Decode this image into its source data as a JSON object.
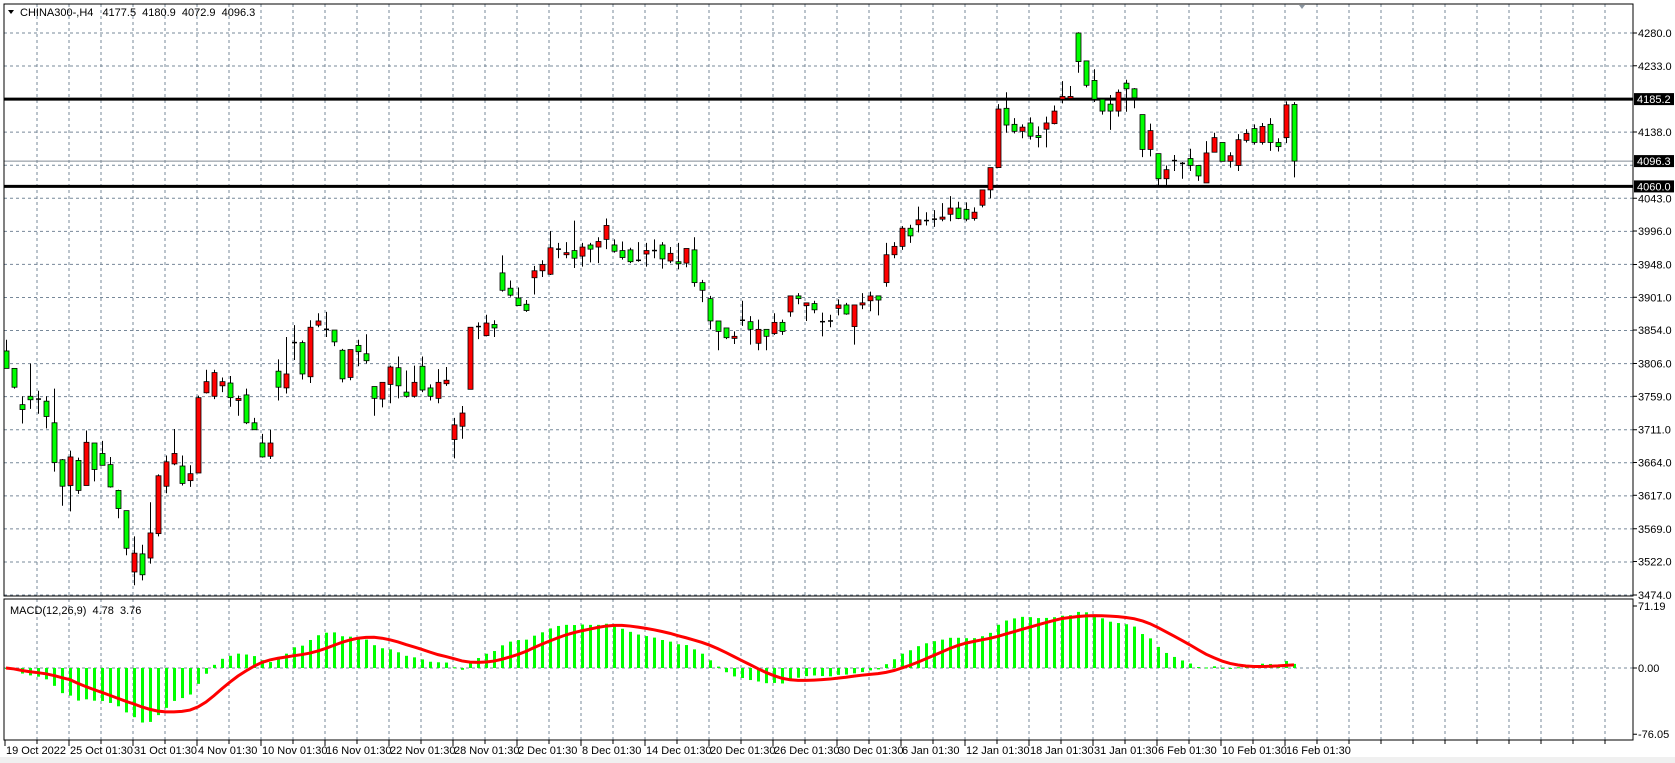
{
  "header": {
    "symbol": "CHINA300-",
    "timeframe": "H4",
    "open": "4177.5",
    "high": "4180.9",
    "low": "4072.9",
    "close": "4096.3",
    "menu_icon": "triangle-down-icon"
  },
  "indicator": {
    "label": "MACD(12,26,9)",
    "main_value": "4.78",
    "signal_value": "3.76",
    "fast": 12,
    "slow": 26,
    "signal": 9
  },
  "colors": {
    "bull_body": "#ff0000",
    "bear_body": "#00ff00",
    "wick": "#000000",
    "grid": "#778899",
    "macd_histogram": "#00ff00",
    "macd_signal": "#ff0000",
    "level_line": "#000000",
    "bid_line": "#808a94"
  },
  "price_axis": {
    "ticks": [
      "4280.0",
      "4233.0",
      "4138.0",
      "4043.0",
      "3996.0",
      "3948.0",
      "3901.0",
      "3854.0",
      "3806.0",
      "3759.0",
      "3711.0",
      "3664.0",
      "3617.0",
      "3569.0",
      "3522.0",
      "3474.0"
    ],
    "range": [
      3474.0,
      4280.0
    ]
  },
  "levels": [
    {
      "price": "4185.2",
      "type": "horizontal-line"
    },
    {
      "price": "4060.0",
      "type": "horizontal-line"
    },
    {
      "price": "4096.3",
      "type": "bid-line"
    }
  ],
  "macd_axis": {
    "ticks": [
      "71.19",
      "0.00",
      "-76.05"
    ],
    "range": [
      -76.05,
      71.19
    ]
  },
  "time_axis": {
    "labels": [
      "19 Oct 2022",
      "25 Oct 01:30",
      "31 Oct 01:30",
      "4 Nov 01:30",
      "10 Nov 01:30",
      "16 Nov 01:30",
      "22 Nov 01:30",
      "28 Nov 01:30",
      "2 Dec 01:30",
      "8 Dec 01:30",
      "14 Dec 01:30",
      "20 Dec 01:30",
      "26 Dec 01:30",
      "30 Dec 01:30",
      "6 Jan 01:30",
      "12 Jan 01:30",
      "18 Jan 01:30",
      "31 Jan 01:30",
      "6 Feb 01:30",
      "10 Feb 01:30",
      "16 Feb 01:30"
    ]
  },
  "chart_data": {
    "type": "candlestick",
    "ohlc_order": [
      "open",
      "high",
      "low",
      "close"
    ],
    "ylim": [
      3474.0,
      4280.0
    ],
    "grid": true,
    "candles": [
      [
        3824,
        3840,
        3799,
        3799
      ],
      [
        3799,
        3799,
        3770,
        3772
      ],
      [
        3747,
        3759,
        3720,
        3740
      ],
      [
        3759,
        3806,
        3741,
        3754
      ],
      [
        3755,
        3767,
        3734,
        3755
      ],
      [
        3752,
        3759,
        3713,
        3730
      ],
      [
        3721,
        3770,
        3651,
        3664
      ],
      [
        3668,
        3669,
        3602,
        3630
      ],
      [
        3631,
        3681,
        3594,
        3672
      ],
      [
        3667,
        3671,
        3619,
        3624
      ],
      [
        3631,
        3710,
        3631,
        3693
      ],
      [
        3692,
        3692,
        3637,
        3654
      ],
      [
        3677,
        3695,
        3660,
        3660
      ],
      [
        3661,
        3672,
        3628,
        3629
      ],
      [
        3624,
        3625,
        3584,
        3598
      ],
      [
        3595,
        3595,
        3531,
        3541
      ],
      [
        3507,
        3558,
        3488,
        3534
      ],
      [
        3533,
        3546,
        3495,
        3503
      ],
      [
        3527,
        3607,
        3519,
        3563
      ],
      [
        3562,
        3647,
        3558,
        3645
      ],
      [
        3630,
        3674,
        3620,
        3665
      ],
      [
        3662,
        3712,
        3660,
        3677
      ],
      [
        3659,
        3674,
        3631,
        3634
      ],
      [
        3638,
        3660,
        3629,
        3648
      ],
      [
        3649,
        3760,
        3649,
        3757
      ],
      [
        3764,
        3797,
        3763,
        3780
      ],
      [
        3759,
        3797,
        3755,
        3793
      ],
      [
        3774,
        3786,
        3765,
        3780
      ],
      [
        3778,
        3788,
        3744,
        3757
      ],
      [
        3753,
        3760,
        3731,
        3756
      ],
      [
        3761,
        3770,
        3719,
        3721
      ],
      [
        3721,
        3728,
        3711,
        3711
      ],
      [
        3692,
        3705,
        3671,
        3672
      ],
      [
        3673,
        3711,
        3669,
        3692
      ],
      [
        3795,
        3812,
        3753,
        3772
      ],
      [
        3771,
        3844,
        3763,
        3791
      ],
      [
        3836,
        3861,
        3811,
        3836
      ],
      [
        3836,
        3839,
        3783,
        3791
      ],
      [
        3787,
        3868,
        3778,
        3858
      ],
      [
        3861,
        3878,
        3858,
        3867
      ],
      [
        3855,
        3880,
        3844,
        3855
      ],
      [
        3854,
        3854,
        3831,
        3837
      ],
      [
        3825,
        3827,
        3779,
        3784
      ],
      [
        3786,
        3826,
        3782,
        3826
      ],
      [
        3832,
        3840,
        3802,
        3823
      ],
      [
        3820,
        3848,
        3806,
        3810
      ],
      [
        3773,
        3773,
        3731,
        3756
      ],
      [
        3755,
        3779,
        3743,
        3779
      ],
      [
        3776,
        3803,
        3749,
        3801
      ],
      [
        3800,
        3816,
        3756,
        3774
      ],
      [
        3765,
        3796,
        3757,
        3759
      ],
      [
        3759,
        3803,
        3757,
        3779
      ],
      [
        3802,
        3816,
        3765,
        3768
      ],
      [
        3771,
        3776,
        3753,
        3759
      ],
      [
        3756,
        3798,
        3749,
        3779
      ],
      [
        3777,
        3801,
        3774,
        3782
      ],
      [
        3697,
        3728,
        3670,
        3718
      ],
      [
        3716,
        3745,
        3698,
        3735
      ],
      [
        3769,
        3858,
        3769,
        3858
      ],
      [
        3859,
        3865,
        3841,
        3859
      ],
      [
        3846,
        3876,
        3845,
        3864
      ],
      [
        3862,
        3868,
        3844,
        3857
      ],
      [
        3936,
        3961,
        3909,
        3911
      ],
      [
        3914,
        3925,
        3902,
        3904
      ],
      [
        3900,
        3915,
        3889,
        3889
      ],
      [
        3891,
        3897,
        3880,
        3882
      ],
      [
        3929,
        3946,
        3905,
        3939
      ],
      [
        3939,
        3954,
        3930,
        3948
      ],
      [
        3934,
        3996,
        3933,
        3972
      ],
      [
        3970,
        3979,
        3957,
        3970
      ],
      [
        3962,
        3980,
        3957,
        3965
      ],
      [
        3968,
        4011,
        3943,
        3957
      ],
      [
        3960,
        3979,
        3945,
        3973
      ],
      [
        3976,
        3979,
        3951,
        3970
      ],
      [
        3973,
        3987,
        3950,
        3981
      ],
      [
        3984,
        4014,
        3970,
        4004
      ],
      [
        3976,
        3984,
        3965,
        3967
      ],
      [
        3968,
        3981,
        3955,
        3958
      ],
      [
        3969,
        3972,
        3950,
        3952
      ],
      [
        3954,
        3980,
        3952,
        3954
      ],
      [
        3963,
        3979,
        3945,
        3968
      ],
      [
        3968,
        3984,
        3957,
        3968
      ],
      [
        3976,
        3980,
        3942,
        3956
      ],
      [
        3953,
        3973,
        3950,
        3964
      ],
      [
        3952,
        3979,
        3941,
        3949
      ],
      [
        3950,
        3971,
        3944,
        3971
      ],
      [
        3969,
        3987,
        3916,
        3922
      ],
      [
        3922,
        3926,
        3894,
        3911
      ],
      [
        3899,
        3903,
        3855,
        3867
      ],
      [
        3867,
        3867,
        3825,
        3852
      ],
      [
        3857,
        3857,
        3841,
        3843
      ],
      [
        3842,
        3852,
        3834,
        3845
      ],
      [
        3868,
        3896,
        3860,
        3868
      ],
      [
        3866,
        3874,
        3833,
        3855
      ],
      [
        3835,
        3869,
        3825,
        3855
      ],
      [
        3855,
        3855,
        3825,
        3845
      ],
      [
        3849,
        3878,
        3847,
        3865
      ],
      [
        3865,
        3869,
        3847,
        3852
      ],
      [
        3880,
        3903,
        3873,
        3903
      ],
      [
        3903,
        3907,
        3891,
        3899
      ],
      [
        3889,
        3893,
        3867,
        3893
      ],
      [
        3892,
        3896,
        3878,
        3883
      ],
      [
        3866,
        3879,
        3845,
        3866
      ],
      [
        3867,
        3876,
        3858,
        3867
      ],
      [
        3885,
        3898,
        3875,
        3890
      ],
      [
        3890,
        3893,
        3876,
        3877
      ],
      [
        3859,
        3890,
        3833,
        3890
      ],
      [
        3890,
        3907,
        3884,
        3893
      ],
      [
        3896,
        3909,
        3881,
        3903
      ],
      [
        3903,
        3903,
        3875,
        3897
      ],
      [
        3922,
        3979,
        3916,
        3962
      ],
      [
        3962,
        3980,
        3957,
        3974
      ],
      [
        3974,
        4003,
        3969,
        4000
      ],
      [
        4000,
        4005,
        3979,
        3989
      ],
      [
        4005,
        4031,
        3994,
        4012
      ],
      [
        4011,
        4023,
        4004,
        4011
      ],
      [
        4013,
        4026,
        4002,
        4013
      ],
      [
        4013,
        4036,
        4010,
        4016
      ],
      [
        4020,
        4046,
        4010,
        4029
      ],
      [
        4029,
        4038,
        4013,
        4014
      ],
      [
        4027,
        4037,
        4010,
        4013
      ],
      [
        4014,
        4030,
        4011,
        4023
      ],
      [
        4033,
        4055,
        4030,
        4055
      ],
      [
        4055,
        4087,
        4043,
        4087
      ],
      [
        4087,
        4178,
        4087,
        4171
      ],
      [
        4172,
        4195,
        4137,
        4148
      ],
      [
        4149,
        4158,
        4136,
        4139
      ],
      [
        4139,
        4149,
        4129,
        4145
      ],
      [
        4151,
        4159,
        4127,
        4132
      ],
      [
        4133,
        4146,
        4116,
        4130
      ],
      [
        4142,
        4160,
        4116,
        4151
      ],
      [
        4150,
        4176,
        4149,
        4168
      ],
      [
        4185,
        4211,
        4179,
        4189
      ],
      [
        4186,
        4204,
        4184,
        4189
      ],
      [
        4280,
        4281,
        4223,
        4239
      ],
      [
        4240,
        4240,
        4202,
        4205
      ],
      [
        4212,
        4228,
        4181,
        4185
      ],
      [
        4185,
        4185,
        4163,
        4168
      ],
      [
        4178,
        4191,
        4141,
        4168
      ],
      [
        4168,
        4199,
        4160,
        4195
      ],
      [
        4208,
        4213,
        4167,
        4200
      ],
      [
        4200,
        4201,
        4172,
        4187
      ],
      [
        4163,
        4163,
        4102,
        4113
      ],
      [
        4113,
        4150,
        4103,
        4140
      ],
      [
        4107,
        4107,
        4061,
        4071
      ],
      [
        4071,
        4090,
        4061,
        4084
      ],
      [
        4097,
        4105,
        4082,
        4097
      ],
      [
        4093,
        4095,
        4071,
        4093
      ],
      [
        4100,
        4114,
        4082,
        4090
      ],
      [
        4090,
        4090,
        4068,
        4075
      ],
      [
        4065,
        4125,
        4065,
        4108
      ],
      [
        4109,
        4137,
        4109,
        4130
      ],
      [
        4123,
        4123,
        4096,
        4096
      ],
      [
        4096,
        4109,
        4087,
        4104
      ],
      [
        4090,
        4135,
        4082,
        4127
      ],
      [
        4126,
        4142,
        4123,
        4136
      ],
      [
        4143,
        4149,
        4120,
        4123
      ],
      [
        4123,
        4151,
        4120,
        4146
      ],
      [
        4149,
        4158,
        4111,
        4123
      ],
      [
        4123,
        4129,
        4110,
        4117
      ],
      [
        4130,
        4182,
        4122,
        4177
      ],
      [
        4177.5,
        4180.9,
        4072.9,
        4096.3
      ]
    ]
  }
}
